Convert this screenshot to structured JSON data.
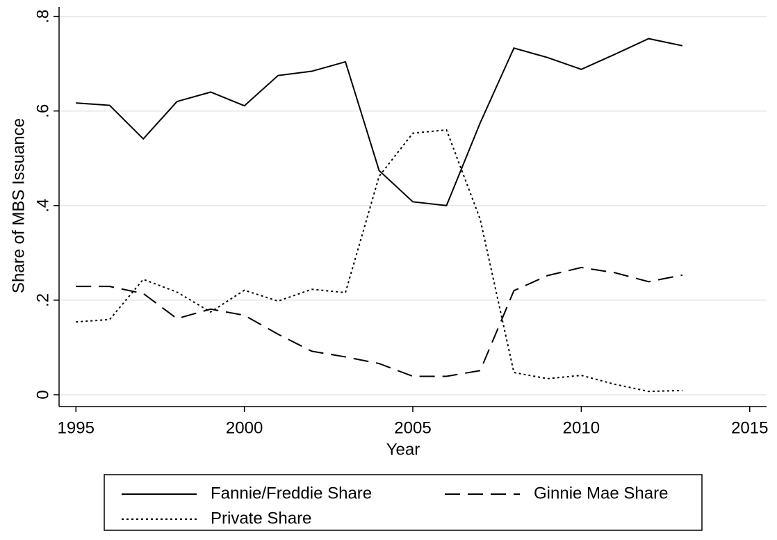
{
  "chart_data": {
    "type": "line",
    "x_label": "Year",
    "y_label": "Share of MBS Issuance",
    "x": [
      1995,
      1996,
      1997,
      1998,
      1999,
      2000,
      2001,
      2002,
      2003,
      2004,
      2005,
      2006,
      2007,
      2008,
      2009,
      2010,
      2011,
      2012,
      2013
    ],
    "series": [
      {
        "name": "Fannie/Freddie Share",
        "color": "#000000",
        "style": "solid",
        "values": [
          0.617,
          0.612,
          0.541,
          0.62,
          0.64,
          0.611,
          0.675,
          0.684,
          0.704,
          0.474,
          0.408,
          0.4,
          0.575,
          0.733,
          0.713,
          0.688,
          0.72,
          0.753,
          0.738
        ]
      },
      {
        "name": "Ginnie Mae Share",
        "color": "#000000",
        "style": "dashed",
        "values": [
          0.229,
          0.229,
          0.214,
          0.161,
          0.181,
          0.168,
          0.128,
          0.092,
          0.08,
          0.066,
          0.039,
          0.039,
          0.051,
          0.22,
          0.252,
          0.269,
          0.258,
          0.239,
          0.253
        ]
      },
      {
        "name": "Private Share",
        "color": "#000000",
        "style": "dotted",
        "values": [
          0.154,
          0.159,
          0.244,
          0.217,
          0.175,
          0.221,
          0.198,
          0.223,
          0.216,
          0.462,
          0.553,
          0.56,
          0.371,
          0.047,
          0.034,
          0.041,
          0.022,
          0.007,
          0.009
        ]
      }
    ],
    "xlim": [
      1994.5,
      2015.5
    ],
    "xticks": [
      1995,
      2000,
      2005,
      2010,
      2015
    ],
    "ylim": [
      -0.025,
      0.82
    ],
    "yticks": [
      0,
      {
        "value": 0.2,
        "label": ".2"
      },
      {
        "value": 0.4,
        "label": ".4"
      },
      {
        "value": 0.6,
        "label": ".6"
      },
      {
        "value": 0.8,
        "label": ".8"
      }
    ],
    "grid": true,
    "legend": "bottom"
  }
}
